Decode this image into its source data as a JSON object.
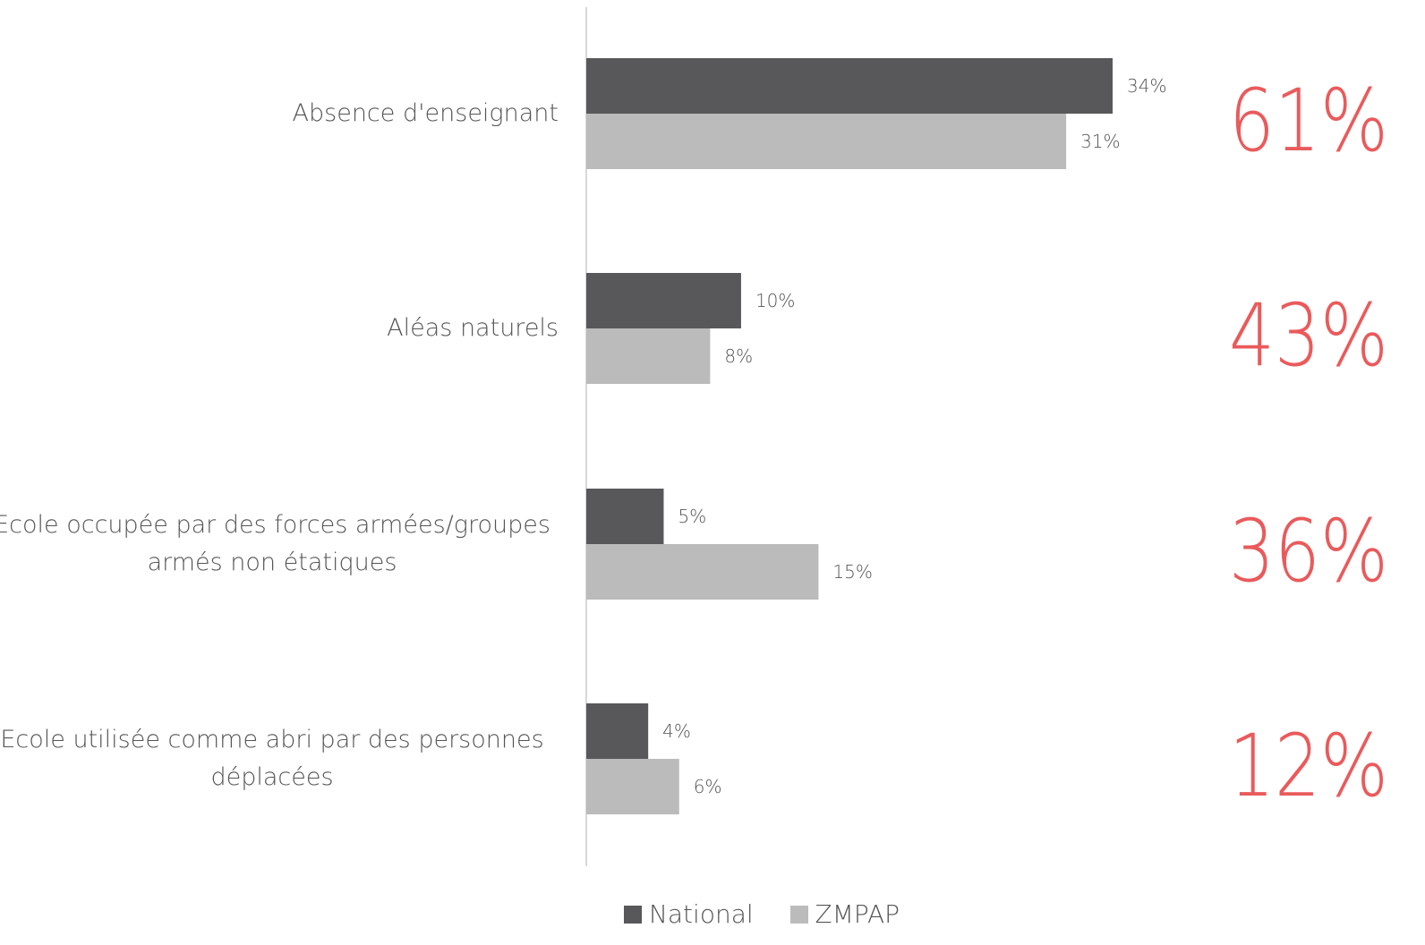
{
  "chart_data": {
    "type": "bar",
    "orientation": "horizontal",
    "categories": [
      "Absence d'enseignant",
      "Aléas naturels",
      "Ecole occupée par des forces armées/groupes armés non étatiques",
      "Ecole utilisée comme abri par des personnes déplacées"
    ],
    "category_lines": [
      [
        "Absence d'enseignant"
      ],
      [
        "Aléas naturels"
      ],
      [
        "Ecole occupée par des forces armées/groupes",
        "armés non étatiques"
      ],
      [
        "Ecole utilisée comme abri par des personnes",
        "déplacées"
      ]
    ],
    "series": [
      {
        "name": "National",
        "values": [
          34,
          10,
          5,
          4
        ],
        "labels": [
          "34%",
          "10%",
          "5%",
          "4%"
        ],
        "color": "#58585a"
      },
      {
        "name": "ZMPAP",
        "values": [
          31,
          8,
          15,
          6
        ],
        "labels": [
          "31%",
          "8%",
          "15%",
          "6%"
        ],
        "color": "#bbbbbb"
      }
    ],
    "annotations": [
      "61%",
      "43%",
      "36%",
      "12%"
    ],
    "annotation_color": "#ea5a5b",
    "xlim": [
      0,
      40
    ],
    "grid": false,
    "legend_position": "bottom"
  }
}
